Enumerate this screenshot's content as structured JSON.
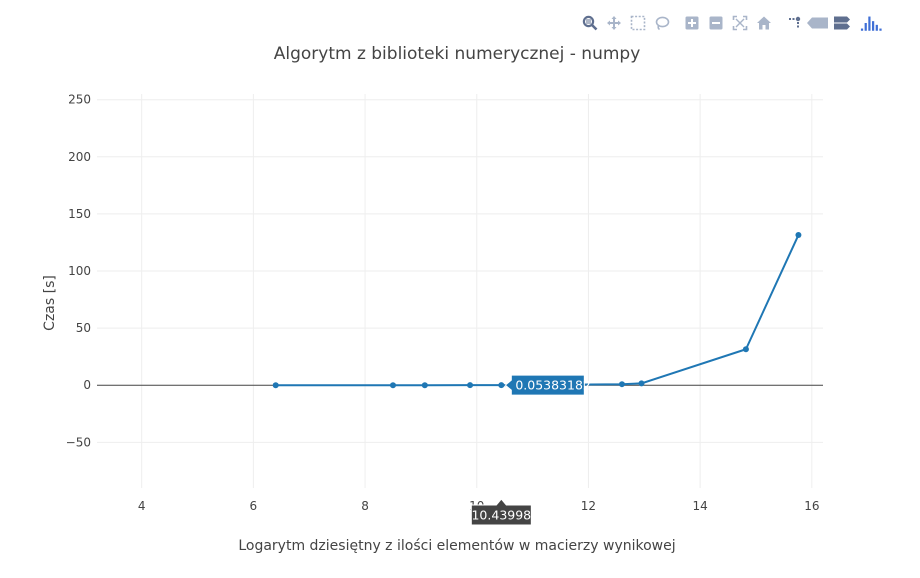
{
  "chart_data": {
    "type": "line",
    "title": "Algorytm z biblioteki numerycznej - numpy",
    "xlabel": "Logarytm dziesiętny z ilości elementów w macierzy wynikowej",
    "ylabel": "Czas [s]",
    "xlim": [
      3.2,
      16.2
    ],
    "ylim": [
      -90,
      255
    ],
    "x_ticks": [
      4,
      6,
      8,
      10,
      12,
      14,
      16
    ],
    "x_tick_labels": [
      "4",
      "6",
      "8",
      "10",
      "12",
      "14",
      "16"
    ],
    "y_ticks": [
      -50,
      0,
      50,
      100,
      150,
      200,
      250
    ],
    "y_tick_labels": [
      "−50",
      "0",
      "50",
      "100",
      "150",
      "200",
      "250"
    ],
    "grid": true,
    "series": [
      {
        "name": "numpy",
        "color": "#1f77b4",
        "x": [
          6.4,
          8.5,
          9.07,
          9.88,
          10.43998,
          12.6,
          12.95,
          14.82,
          15.76
        ],
        "y": [
          0.0002,
          0.004,
          0.009,
          0.03,
          0.05383182,
          0.9,
          1.6,
          31.5,
          131.5
        ]
      }
    ],
    "hover": {
      "y_label": "0.05383182",
      "x_label": "10.43998",
      "point_index": 4
    }
  },
  "modebar": {
    "icons": [
      "zoom-icon",
      "pan-icon",
      "box-select-icon",
      "lasso-select-icon",
      "zoom-in-icon",
      "zoom-out-icon",
      "autoscale-icon",
      "reset-axes-icon",
      "toggle-spike-lines-icon",
      "hover-closest-icon",
      "hover-compare-icon",
      "plotly-logo-icon"
    ]
  },
  "colors": {
    "line": "#1f77b4",
    "grid": "#eeeeee",
    "zeroline": "#444444",
    "hover_bg": "#1f77b4",
    "axis_hover_bg": "#444444",
    "modebar_icon": "#7f94b5"
  }
}
